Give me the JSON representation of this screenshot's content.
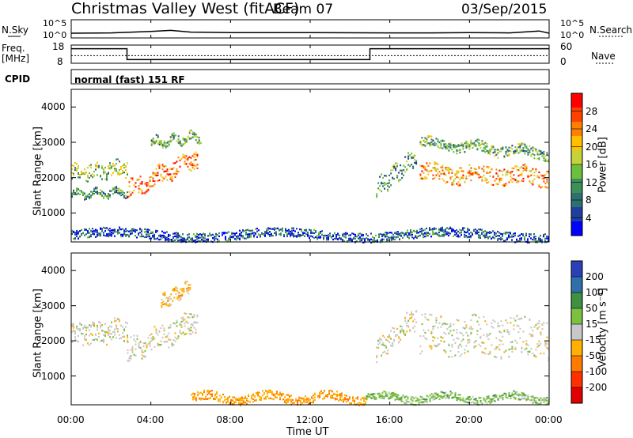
{
  "header": {
    "title": "Christmas Valley West (fitACF)",
    "beam": "Beam 07",
    "date": "03/Sep/2015"
  },
  "sidepanels": {
    "nsky_label": "N.Sky",
    "nsearch_label": "N.Search",
    "freq_label_line1": "Freq.",
    "freq_label_line2": "[MHz]",
    "nave_label": "Nave",
    "cpid_label": "CPID",
    "cpid_text": "normal (fast) 151 RF",
    "noise_ticks_left": [
      "10^5",
      "10^0"
    ],
    "noise_ticks_right": [
      "10^5",
      "10^0"
    ],
    "freq_ticks": [
      "18",
      "8"
    ],
    "nave_ticks": [
      "60",
      "0"
    ]
  },
  "axes": {
    "ylabel": "Slant Range [km]",
    "xlabel": "Time UT",
    "x_ticks": [
      "00:00",
      "04:00",
      "08:00",
      "12:00",
      "16:00",
      "20:00",
      "00:00"
    ],
    "y_ticks": [
      "1000",
      "2000",
      "3000",
      "4000"
    ]
  },
  "colorbars": {
    "power": {
      "label": "Power [dB]",
      "ticks": [
        "4",
        "8",
        "12",
        "16",
        "20",
        "24",
        "28"
      ],
      "colors": [
        "#0000ff",
        "#1f3fa0",
        "#2e7070",
        "#3c8f5a",
        "#6cbf3c",
        "#c6d23a",
        "#ffc000",
        "#ff8000",
        "#ff4000",
        "#ff0000"
      ]
    },
    "velocity": {
      "label": "Velocity [m s⁻¹]",
      "ticks": [
        "200",
        "100",
        "50",
        "15",
        "-15",
        "-50",
        "-100",
        "-200"
      ],
      "colors": [
        "#2a3fb8",
        "#2f6faa",
        "#3f9040",
        "#7cc040",
        "#c8c8c8",
        "#ffb000",
        "#ff7a00",
        "#ff3000",
        "#e00000"
      ]
    }
  },
  "chart_data": [
    {
      "type": "line",
      "title": "N.Sky / N.Search",
      "x_unit": "hours UT",
      "xlim": [
        0,
        24
      ],
      "scale": "log",
      "ylim": [
        1,
        100000
      ],
      "series": [
        {
          "name": "N.Sky",
          "x": [
            0,
            2,
            4,
            5,
            6,
            8,
            12,
            16,
            18,
            20,
            22,
            23.5,
            24
          ],
          "y": [
            20,
            25,
            60,
            120,
            40,
            30,
            30,
            25,
            25,
            30,
            25,
            80,
            20
          ]
        },
        {
          "name": "N.Search",
          "x": [
            0,
            24
          ],
          "y": [
            1,
            1
          ]
        }
      ]
    },
    {
      "type": "line",
      "title": "Freq. / Nave",
      "x_unit": "hours UT",
      "xlim": [
        0,
        24
      ],
      "series": [
        {
          "name": "Freq.",
          "unit": "MHz",
          "x": [
            0,
            2.8,
            2.8,
            15,
            15,
            24
          ],
          "y": [
            16,
            16,
            10,
            10,
            16,
            16
          ]
        },
        {
          "name": "Nave",
          "x": [
            0,
            24
          ],
          "y": [
            25,
            25
          ]
        }
      ]
    },
    {
      "type": "heatmap",
      "title": "Power [dB]",
      "x_unit": "hours UT",
      "xlim": [
        0,
        24
      ],
      "ylim": [
        180,
        4500
      ],
      "clim": [
        0,
        30
      ],
      "regions": [
        {
          "x": [
            0.0,
            2.8
          ],
          "range_center": [
            2150,
            2300
          ],
          "range_width": 450,
          "value": 14
        },
        {
          "x": [
            0.0,
            2.8
          ],
          "range_center": [
            1550,
            1600
          ],
          "range_width": 180,
          "value": 10
        },
        {
          "x": [
            2.8,
            6.3
          ],
          "range_center": [
            1650,
            2600
          ],
          "range_width": 500,
          "value": 24
        },
        {
          "x": [
            4.0,
            6.5
          ],
          "range_center": [
            3000,
            3200
          ],
          "range_width": 250,
          "value": 12
        },
        {
          "x": [
            15.3,
            17.3
          ],
          "range_center": [
            1700,
            2600
          ],
          "range_width": 500,
          "value": 10
        },
        {
          "x": [
            17.5,
            24.0
          ],
          "range_center": [
            2150,
            2050
          ],
          "range_width": 500,
          "value": 22
        },
        {
          "x": [
            17.5,
            24.0
          ],
          "range_center": [
            3000,
            2700
          ],
          "range_width": 300,
          "value": 12
        },
        {
          "x": [
            0.0,
            24.0
          ],
          "range_center": [
            400,
            400
          ],
          "range_width": 260,
          "value": 6
        }
      ]
    },
    {
      "type": "heatmap",
      "title": "Velocity [m s⁻¹]",
      "x_unit": "hours UT",
      "xlim": [
        0,
        24
      ],
      "ylim": [
        180,
        4500
      ],
      "clim": [
        -200,
        200
      ],
      "regions": [
        {
          "x": [
            0.0,
            2.8
          ],
          "range_center": [
            2200,
            2350
          ],
          "range_width": 600,
          "value": 0
        },
        {
          "x": [
            2.8,
            6.3
          ],
          "range_center": [
            1700,
            2600
          ],
          "range_width": 650,
          "value": 0
        },
        {
          "x": [
            4.5,
            6.0
          ],
          "range_center": [
            3100,
            3600
          ],
          "range_width": 350,
          "value": -40
        },
        {
          "x": [
            15.3,
            17.3
          ],
          "range_center": [
            1700,
            2700
          ],
          "range_width": 600,
          "value": 0
        },
        {
          "x": [
            17.5,
            24.0
          ],
          "range_center": [
            2200,
            2100
          ],
          "range_width": 1100,
          "value": 0
        },
        {
          "x": [
            6.0,
            14.8
          ],
          "range_center": [
            400,
            400
          ],
          "range_width": 260,
          "value": -60
        },
        {
          "x": [
            14.8,
            24.0
          ],
          "range_center": [
            400,
            400
          ],
          "range_width": 220,
          "value": 40
        }
      ]
    }
  ]
}
